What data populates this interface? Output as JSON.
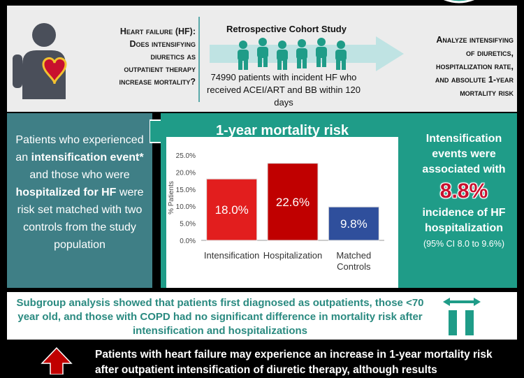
{
  "header": {
    "question": "Heart failure (HF): Does intensifying diuretics as outpatient therapy increase mortality?",
    "question_lines": [
      "Heart failure (HF):",
      "Does intensifying",
      "diuretics as",
      "outpatient therapy",
      "increase mortality?"
    ],
    "study_title": "Retrospective Cohort Study",
    "study_desc": "74990 patients with incident HF who received ACEI/ART and BB within 120 days",
    "analyze_lines": [
      "Analyze intensifying",
      "of diuretics,",
      "hospitalization rate,",
      "and absolute 1-year",
      "mortality risk"
    ]
  },
  "left": {
    "t1": "Patients who experienced an ",
    "b1": "intensification event*",
    "t2": " and those who were ",
    "b2": "hospitalized for HF",
    "t3": " were risk set matched with two controls from the study population"
  },
  "right": {
    "line1": "Intensification events were associated with",
    "pct": "8.8%",
    "line2": "incidence of HF hospitalization",
    "ci": "(95% CI 8.0 to 9.6%)"
  },
  "subgroup": "Subgroup analysis showed that patients first diagnosed as outpatients, those <70 year old, and those with COPD had no significant difference in mortality risk after intensification and hospitalizations",
  "conclusion": "Patients with heart failure may experience an increase in 1-year mortality risk after outpatient intensification of diuretic therapy, although results",
  "chart_data": {
    "type": "bar",
    "title": "1-year mortality risk",
    "ylabel": "% Patients",
    "categories": [
      "Intensification",
      "Hospitalization",
      "Matched Controls"
    ],
    "values": [
      18.0,
      22.6,
      9.8
    ],
    "value_labels": [
      "18.0%",
      "22.6%",
      "9.8%"
    ],
    "ylim": [
      0,
      25
    ],
    "yticks": [
      "0.0%",
      "5.0%",
      "10.0%",
      "15.0%",
      "20.0%",
      "25.0%"
    ],
    "colors": [
      "#e21e1e",
      "#c00000",
      "#2f4f9c"
    ]
  },
  "colors": {
    "teal": "#1f9c88",
    "slate": "#3f7f86",
    "red": "#c8102e"
  }
}
